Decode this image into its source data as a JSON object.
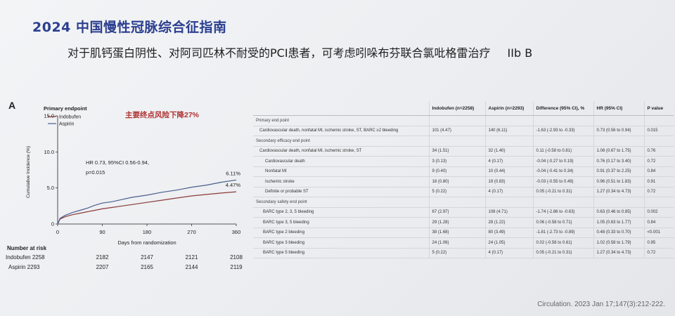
{
  "slide": {
    "title": "2024 中国慢性冠脉综合征指南",
    "recommendation": "对于肌钙蛋白阴性、对阿司匹林不耐受的PCI患者，可考虑吲哚布芬联合氯吡格雷治疗",
    "grade": "IIb B"
  },
  "panel_letter": "A",
  "annotation": "主要终点风险下降27%",
  "hr_text": {
    "line1": "HR 0.73, 95%CI 0.56-0.94,",
    "line2": "p=0.015"
  },
  "chart_data": {
    "type": "line",
    "title": "Primary endpoint",
    "xlabel": "Days from randomization",
    "ylabel": "Cumulative Incidence (%)",
    "xlim": [
      0,
      360
    ],
    "ylim": [
      0,
      15
    ],
    "xticks": [
      "0",
      "90",
      "180",
      "270",
      "360"
    ],
    "yticks": [
      "0",
      "5.0",
      "10.0",
      "15.0"
    ],
    "legend_position": "top-left",
    "series": [
      {
        "name": "Indobufen",
        "color": "#8a3a3a",
        "end_label": "4.47%",
        "x": [
          0,
          5,
          15,
          30,
          45,
          60,
          75,
          90,
          110,
          130,
          150,
          180,
          210,
          240,
          270,
          300,
          330,
          360
        ],
        "y": [
          0,
          0.7,
          1.0,
          1.3,
          1.5,
          1.7,
          1.9,
          2.1,
          2.3,
          2.5,
          2.7,
          3.0,
          3.3,
          3.6,
          3.9,
          4.1,
          4.3,
          4.47
        ]
      },
      {
        "name": "Aspirin",
        "color": "#4a5d8c",
        "end_label": "6.11%",
        "x": [
          0,
          5,
          15,
          30,
          45,
          60,
          75,
          90,
          110,
          130,
          150,
          180,
          210,
          240,
          270,
          300,
          330,
          360
        ],
        "y": [
          0,
          0.8,
          1.2,
          1.6,
          1.9,
          2.2,
          2.6,
          2.9,
          3.1,
          3.4,
          3.7,
          4.0,
          4.4,
          4.7,
          5.1,
          5.4,
          5.8,
          6.11
        ]
      }
    ]
  },
  "risk_table": {
    "title": "Number at risk",
    "rows": [
      {
        "label": "Indobufen 2258",
        "values": [
          "2182",
          "2147",
          "2121",
          "2108"
        ]
      },
      {
        "label": "Aspirin 2293",
        "values": [
          "2207",
          "2165",
          "2144",
          "2119"
        ]
      }
    ]
  },
  "table": {
    "headers": [
      "",
      "Indobufen (n=2258)",
      "Aspirin (n=2293)",
      "Difference (95% CI), %",
      "HR (95% CI)",
      "P value"
    ],
    "rows": [
      {
        "kind": "section",
        "label": "Primary end point",
        "cells": [
          "",
          "",
          "",
          "",
          ""
        ]
      },
      {
        "kind": "ind1",
        "label": "Cardiovascular death, nonfatal MI, ischemic stroke, ST, BARC ≥2 bleeding",
        "cells": [
          "101 (4.47)",
          "140 (6.11)",
          "-1.63 (-2.93 to -0.33)",
          "0.73 (0.56 to 0.94)",
          "0.015"
        ]
      },
      {
        "kind": "section",
        "label": "Secondary efficacy end point",
        "cells": [
          "",
          "",
          "",
          "",
          ""
        ]
      },
      {
        "kind": "ind1",
        "label": "Cardiovascular death, nonfatal MI, ischemic stroke, ST",
        "cells": [
          "34 (1.51)",
          "32 (1.40)",
          "0.11 (-0.58 to 0.81)",
          "1.08 (0.67 to 1.75)",
          "0.76"
        ]
      },
      {
        "kind": "ind2",
        "label": "Cardiovascular death",
        "cells": [
          "3 (0.13)",
          "4 (0.17)",
          "-0.04 (-0.27 to 0.19)",
          "0.76 (0.17 to 3.40)",
          "0.72"
        ]
      },
      {
        "kind": "ind2",
        "label": "Nonfatal MI",
        "cells": [
          "9 (0.40)",
          "10 (0.44)",
          "-0.04 (-0.41 to 0.34)",
          "0.91 (0.37 to 2.25)",
          "0.84"
        ]
      },
      {
        "kind": "ind2",
        "label": "Ischemic stroke",
        "cells": [
          "18 (0.80)",
          "19 (0.83)",
          "-0.03 (-0.55 to 0.49)",
          "0.96 (0.51 to 1.83)",
          "0.91"
        ]
      },
      {
        "kind": "ind2",
        "label": "Definite or probable ST",
        "cells": [
          "5 (0.22)",
          "4 (0.17)",
          "0.05 (-0.21 to 0.31)",
          "1.27 (0.34 to 4.73)",
          "0.72"
        ]
      },
      {
        "kind": "section",
        "label": "Secondary safety end point",
        "cells": [
          "",
          "",
          "",
          "",
          ""
        ]
      },
      {
        "kind": "ind3",
        "label": "BARC type 2, 3, 5 bleeding",
        "cells": [
          "67 (2.97)",
          "108 (4.71)",
          "-1.74 (-2.86 to -0.63)",
          "0.63 (0.46 to 0.85)",
          "0.002"
        ]
      },
      {
        "kind": "ind3",
        "label": "BARC type 3, 5 bleeding",
        "cells": [
          "29 (1.28)",
          "28 (1.22)",
          "0.06 (-0.58 to 0.71)",
          "1.05 (0.63 to 1.77)",
          "0.84"
        ]
      },
      {
        "kind": "ind3",
        "label": "BARC type 2 bleeding",
        "cells": [
          "38 (1.68)",
          "80 (3.49)",
          "-1.81 (-2.73 to -0.89)",
          "0.48 (0.33 to 0.70)",
          "<0.001"
        ]
      },
      {
        "kind": "ind3",
        "label": "BARC type 3 bleeding",
        "cells": [
          "24 (1.06)",
          "24 (1.05)",
          "0.02 (-0.58 to 0.61)",
          "1.02 (0.58 to 1.79)",
          "0.95"
        ]
      },
      {
        "kind": "ind3",
        "label": "BARC type 5 bleeding",
        "cells": [
          "5 (0.22)",
          "4 (0.17)",
          "0.05 (-0.21 to 0.31)",
          "1.27 (0.34 to 4.73)",
          "0.72"
        ]
      }
    ]
  },
  "citation": "Circulation. 2023 Jan 17;147(3):212-222."
}
